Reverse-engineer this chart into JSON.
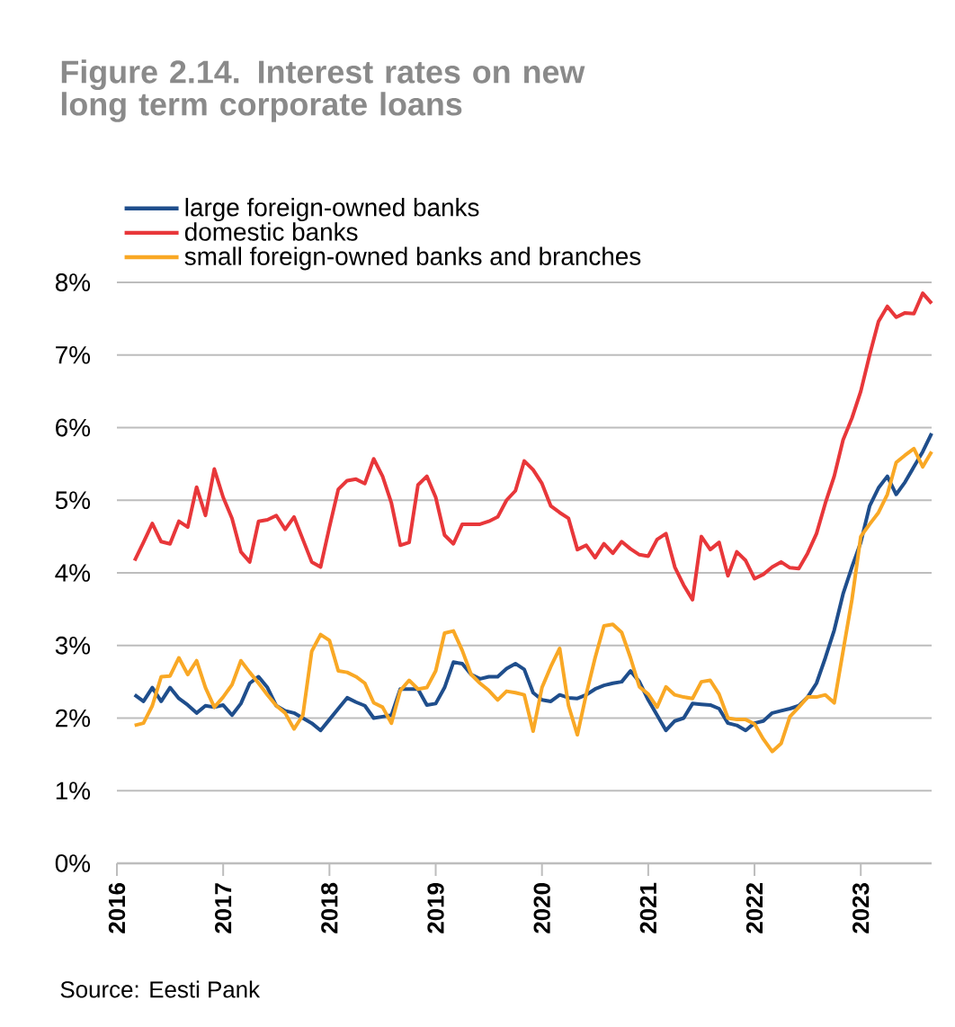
{
  "chart_data": {
    "type": "line",
    "title": "Figure 2.14. Interest rates on new long term corporate loans",
    "annotations": [
      "Source: Eesti Pank"
    ],
    "x": [
      "2016-03",
      "2016-04",
      "2016-05",
      "2016-06",
      "2016-07",
      "2016-08",
      "2016-09",
      "2016-10",
      "2016-11",
      "2016-12",
      "2017-01",
      "2017-02",
      "2017-03",
      "2017-04",
      "2017-05",
      "2017-06",
      "2017-07",
      "2017-08",
      "2017-09",
      "2017-10",
      "2017-11",
      "2017-12",
      "2018-01",
      "2018-02",
      "2018-03",
      "2018-04",
      "2018-05",
      "2018-06",
      "2018-07",
      "2018-08",
      "2018-09",
      "2018-10",
      "2018-11",
      "2018-12",
      "2019-01",
      "2019-02",
      "2019-03",
      "2019-04",
      "2019-05",
      "2019-06",
      "2019-07",
      "2019-08",
      "2019-09",
      "2019-10",
      "2019-11",
      "2019-12",
      "2020-01",
      "2020-02",
      "2020-03",
      "2020-04",
      "2020-05",
      "2020-06",
      "2020-07",
      "2020-08",
      "2020-09",
      "2020-10",
      "2020-11",
      "2020-12",
      "2021-01",
      "2021-02",
      "2021-03",
      "2021-04",
      "2021-05",
      "2021-06",
      "2021-07",
      "2021-08",
      "2021-09",
      "2021-10",
      "2021-11",
      "2021-12",
      "2022-01",
      "2022-02",
      "2022-03",
      "2022-04",
      "2022-05",
      "2022-06",
      "2022-07",
      "2022-08",
      "2022-09",
      "2022-10",
      "2022-11",
      "2022-12",
      "2023-01",
      "2023-02",
      "2023-03",
      "2023-04",
      "2023-05",
      "2023-06",
      "2023-07",
      "2023-08",
      "2023-09"
    ],
    "series": [
      {
        "name": "large foreign-owned banks",
        "color": "#1f4e8c",
        "values": [
          2.32,
          2.23,
          2.42,
          2.23,
          2.42,
          2.27,
          2.18,
          2.07,
          2.17,
          2.15,
          2.18,
          2.04,
          2.2,
          2.48,
          2.57,
          2.42,
          2.17,
          2.1,
          2.07,
          2.0,
          1.93,
          1.83,
          1.98,
          2.13,
          2.28,
          2.22,
          2.17,
          2.0,
          2.02,
          2.04,
          2.4,
          2.4,
          2.4,
          2.18,
          2.2,
          2.42,
          2.77,
          2.75,
          2.6,
          2.54,
          2.57,
          2.57,
          2.68,
          2.75,
          2.67,
          2.35,
          2.25,
          2.23,
          2.32,
          2.28,
          2.27,
          2.32,
          2.4,
          2.45,
          2.48,
          2.5,
          2.65,
          2.5,
          2.25,
          2.04,
          1.83,
          1.96,
          2.0,
          2.2,
          2.19,
          2.18,
          2.13,
          1.93,
          1.9,
          1.83,
          1.93,
          1.96,
          2.07,
          2.1,
          2.13,
          2.17,
          2.29,
          2.48,
          2.83,
          3.21,
          3.71,
          4.08,
          4.42,
          4.92,
          5.17,
          5.33,
          5.08,
          5.25,
          5.46,
          5.67,
          5.92
        ]
      },
      {
        "name": "domestic banks",
        "color": "#e8373a",
        "values": [
          4.17,
          4.42,
          4.68,
          4.43,
          4.4,
          4.71,
          4.63,
          5.18,
          4.79,
          5.43,
          5.04,
          4.75,
          4.29,
          4.15,
          4.71,
          4.73,
          4.79,
          4.6,
          4.77,
          4.46,
          4.15,
          4.08,
          4.63,
          5.15,
          5.27,
          5.29,
          5.23,
          5.57,
          5.33,
          4.96,
          4.38,
          4.42,
          5.21,
          5.33,
          5.04,
          4.52,
          4.4,
          4.67,
          4.67,
          4.67,
          4.71,
          4.77,
          5.0,
          5.13,
          5.54,
          5.42,
          5.23,
          4.92,
          4.83,
          4.75,
          4.32,
          4.38,
          4.21,
          4.4,
          4.27,
          4.43,
          4.33,
          4.25,
          4.23,
          4.46,
          4.54,
          4.08,
          3.83,
          3.63,
          4.5,
          4.32,
          4.42,
          3.96,
          4.29,
          4.17,
          3.92,
          3.98,
          4.08,
          4.15,
          4.07,
          4.06,
          4.27,
          4.54,
          4.96,
          5.33,
          5.83,
          6.13,
          6.5,
          7.0,
          7.46,
          7.67,
          7.52,
          7.58,
          7.57,
          7.85,
          7.71
        ]
      },
      {
        "name": "small foreign-owned banks and branches",
        "color": "#f9a825",
        "values": [
          1.9,
          1.93,
          2.17,
          2.57,
          2.58,
          2.83,
          2.6,
          2.79,
          2.42,
          2.15,
          2.29,
          2.46,
          2.79,
          2.63,
          2.48,
          2.32,
          2.17,
          2.07,
          1.85,
          2.04,
          2.92,
          3.15,
          3.07,
          2.65,
          2.63,
          2.57,
          2.48,
          2.21,
          2.15,
          1.93,
          2.38,
          2.52,
          2.4,
          2.42,
          2.65,
          3.17,
          3.2,
          2.93,
          2.6,
          2.48,
          2.38,
          2.25,
          2.37,
          2.35,
          2.32,
          1.82,
          2.42,
          2.71,
          2.96,
          2.17,
          1.77,
          2.33,
          2.83,
          3.27,
          3.29,
          3.18,
          2.83,
          2.43,
          2.33,
          2.15,
          2.43,
          2.32,
          2.29,
          2.27,
          2.5,
          2.52,
          2.33,
          2.0,
          1.98,
          1.98,
          1.92,
          1.71,
          1.54,
          1.65,
          2.02,
          2.15,
          2.29,
          2.29,
          2.32,
          2.21,
          2.92,
          3.63,
          4.5,
          4.67,
          4.83,
          5.08,
          5.52,
          5.62,
          5.71,
          5.46,
          5.67
        ]
      }
    ],
    "xlim": [
      "2016-01",
      "2023-09"
    ],
    "xticks": [
      "2016",
      "2017",
      "2018",
      "2019",
      "2020",
      "2021",
      "2022",
      "2023"
    ],
    "ylim": [
      0,
      8
    ],
    "yticks": [
      {
        "value": 0,
        "label": "0%"
      },
      {
        "value": 1,
        "label": "1%"
      },
      {
        "value": 2,
        "label": "2%"
      },
      {
        "value": 3,
        "label": "3%"
      },
      {
        "value": 4,
        "label": "4%"
      },
      {
        "value": 5,
        "label": "5%"
      },
      {
        "value": 6,
        "label": "6%"
      },
      {
        "value": 7,
        "label": "7%"
      },
      {
        "value": 8,
        "label": "8%"
      }
    ],
    "grid": "y",
    "legend": "top left",
    "marker": "none",
    "line_style": "solid"
  }
}
